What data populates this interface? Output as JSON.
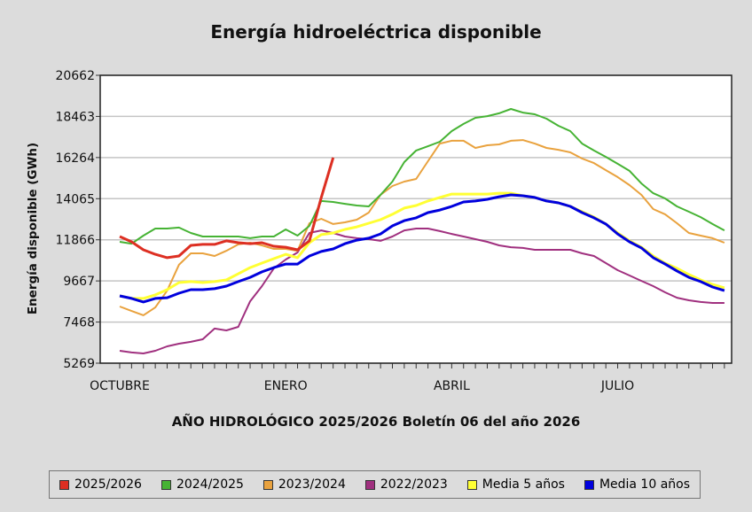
{
  "chart_data": {
    "type": "line",
    "title": "Energía hidroeléctrica disponible",
    "ylabel": "Energía disponible  (GWh)",
    "xlabel": "AÑO HIDROLÓGICO 2025/2026 Boletín 06 del año 2026",
    "ylim": [
      5269,
      20662
    ],
    "yticks": [
      "20662",
      "18463",
      "16264",
      "14065",
      "11866",
      "9667",
      "7468",
      "5269"
    ],
    "ytick_values": [
      20662,
      18463,
      16264,
      14065,
      11866,
      9667,
      7468,
      5269
    ],
    "x_weeks": 52,
    "xtick_labels": [
      {
        "label": "OCTUBRE",
        "week": 0
      },
      {
        "label": "ENERO",
        "week": 14
      },
      {
        "label": "ABRIL",
        "week": 28
      },
      {
        "label": "JULIO",
        "week": 42
      }
    ],
    "grid": true,
    "legend_position": "bottom",
    "series": [
      {
        "name": "2022/2023",
        "color": "#a0307f",
        "width": 2,
        "values": [
          5930,
          5840,
          5790,
          5930,
          6170,
          6310,
          6410,
          6550,
          7120,
          7020,
          7210,
          8580,
          9390,
          10340,
          10810,
          11190,
          12230,
          12370,
          12230,
          12040,
          11950,
          11900,
          11810,
          12040,
          12370,
          12470,
          12470,
          12330,
          12180,
          12040,
          11900,
          11760,
          11570,
          11470,
          11430,
          11330,
          11330,
          11330,
          11330,
          11140,
          11000,
          10620,
          10240,
          9960,
          9670,
          9390,
          9060,
          8770,
          8630,
          8540,
          8490,
          8490
        ]
      },
      {
        "name": "2023/2024",
        "color": "#e9a23e",
        "width": 2,
        "values": [
          8300,
          8060,
          7830,
          8250,
          9150,
          10530,
          11140,
          11140,
          11000,
          11280,
          11620,
          11710,
          11570,
          11380,
          11380,
          11280,
          12750,
          12990,
          12710,
          12800,
          12940,
          13320,
          14270,
          14740,
          14980,
          15120,
          16070,
          17010,
          17160,
          17160,
          16780,
          16920,
          16970,
          17160,
          17200,
          17010,
          16780,
          16680,
          16540,
          16210,
          15970,
          15590,
          15220,
          14790,
          14270,
          13510,
          13230,
          12750,
          12230,
          12090,
          11950,
          11710
        ]
      },
      {
        "name": "2024/2025",
        "color": "#46b334",
        "width": 2,
        "values": [
          11760,
          11660,
          12090,
          12470,
          12470,
          12520,
          12230,
          12040,
          12040,
          12040,
          12040,
          11950,
          12040,
          12040,
          12420,
          12090,
          12610,
          13940,
          13890,
          13790,
          13700,
          13650,
          14270,
          14980,
          16020,
          16640,
          16870,
          17110,
          17680,
          18060,
          18390,
          18480,
          18630,
          18860,
          18670,
          18580,
          18340,
          17960,
          17680,
          17010,
          16640,
          16300,
          15930,
          15550,
          14880,
          14360,
          14080,
          13650,
          13370,
          13080,
          12710,
          12370
        ]
      },
      {
        "name": "Media 5 años",
        "color": "#ffff33",
        "width": 3,
        "values": [
          8870,
          8730,
          8730,
          8920,
          9200,
          9580,
          9630,
          9580,
          9630,
          9720,
          10050,
          10380,
          10620,
          10860,
          11090,
          10910,
          11710,
          12140,
          12230,
          12420,
          12560,
          12750,
          12940,
          13230,
          13560,
          13700,
          13940,
          14130,
          14310,
          14310,
          14310,
          14310,
          14360,
          14360,
          14220,
          14130,
          13940,
          13840,
          13650,
          13370,
          13080,
          12710,
          12230,
          11810,
          11470,
          11000,
          10620,
          10340,
          10010,
          9720,
          9480,
          9300
        ]
      },
      {
        "name": "Media 10 años",
        "color": "#0000dd",
        "width": 3,
        "values": [
          8870,
          8730,
          8540,
          8730,
          8770,
          9010,
          9200,
          9200,
          9250,
          9390,
          9630,
          9860,
          10150,
          10380,
          10570,
          10570,
          11000,
          11240,
          11380,
          11660,
          11850,
          11950,
          12180,
          12610,
          12890,
          13040,
          13320,
          13460,
          13650,
          13890,
          13940,
          14030,
          14170,
          14270,
          14220,
          14130,
          13940,
          13840,
          13650,
          13320,
          13040,
          12710,
          12180,
          11760,
          11430,
          10910,
          10570,
          10200,
          9860,
          9630,
          9340,
          9150
        ]
      },
      {
        "name": "2025/2026",
        "color": "#dd2f22",
        "width": 3,
        "values": [
          12040,
          11760,
          11330,
          11090,
          10910,
          11000,
          11570,
          11620,
          11620,
          11810,
          11710,
          11660,
          11710,
          11520,
          11470,
          11330,
          11810,
          14130,
          16260
        ]
      }
    ],
    "legend_order": [
      "2025/2026",
      "2024/2025",
      "2023/2024",
      "2022/2023",
      "Media 5 años",
      "Media 10 años"
    ]
  }
}
